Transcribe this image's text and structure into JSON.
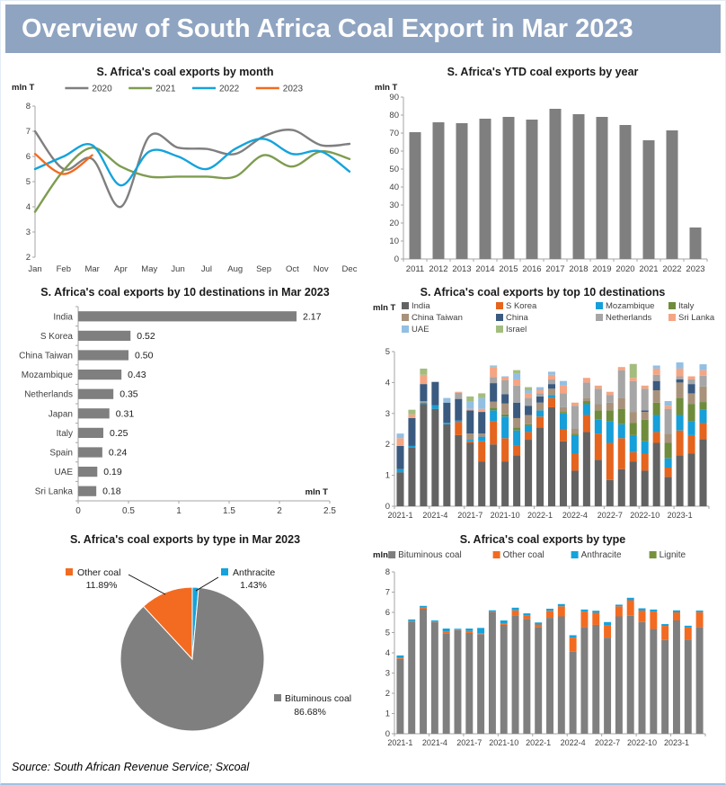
{
  "header": {
    "title": "Overview of South Africa Coal Export in Mar 2023"
  },
  "footer": {
    "source": "Source: South African Revenue Service; Sxcoal"
  },
  "theme": {
    "header_bg": "#8FA4C1",
    "header_text": "#FFFFFF",
    "axis_color": "#A6A6A6",
    "text_color": "#404040",
    "title_color": "#1A1A1A"
  },
  "chart_data": [
    {
      "name": "monthly-exports-line",
      "type": "line",
      "title": "S. Africa's coal exports by month",
      "unit": "mln T",
      "categories": [
        "Jan",
        "Feb",
        "Mar",
        "Apr",
        "May",
        "Jun",
        "Jul",
        "Aug",
        "Sep",
        "Oct",
        "Nov",
        "Dec"
      ],
      "ylim": [
        2,
        8
      ],
      "y_ticks": [
        2,
        3,
        4,
        5,
        6,
        7,
        8
      ],
      "legend_position": "top",
      "series": [
        {
          "name": "2020",
          "color": "#7F7F7F",
          "values": [
            7.0,
            5.5,
            5.9,
            4.0,
            6.8,
            6.35,
            6.3,
            6.1,
            6.8,
            7.05,
            6.45,
            6.5
          ]
        },
        {
          "name": "2021",
          "color": "#7E9C50",
          "values": [
            3.8,
            5.45,
            6.35,
            5.6,
            5.2,
            5.2,
            5.2,
            5.2,
            6.05,
            5.6,
            6.2,
            5.9
          ]
        },
        {
          "name": "2022",
          "color": "#14A3DC",
          "values": [
            5.5,
            6.0,
            6.45,
            4.85,
            6.2,
            6.0,
            5.5,
            6.3,
            6.7,
            6.1,
            6.2,
            5.4
          ]
        },
        {
          "name": "2023",
          "color": "#F26B21",
          "values": [
            6.1,
            5.3,
            6.05
          ]
        }
      ]
    },
    {
      "name": "ytd-exports-bar",
      "type": "bar",
      "title": "S. Africa's YTD coal exports by year",
      "unit": "mln T",
      "color": "#7F7F7F",
      "categories": [
        "2011",
        "2012",
        "2013",
        "2014",
        "2015",
        "2016",
        "2017",
        "2018",
        "2019",
        "2020",
        "2021",
        "2022",
        "2023"
      ],
      "values": [
        70.5,
        76,
        75.5,
        78,
        79,
        77.5,
        83.5,
        80.5,
        79,
        74.5,
        66,
        71.5,
        17.5
      ],
      "ylim": [
        0,
        90
      ],
      "y_ticks": [
        0,
        10,
        20,
        30,
        40,
        50,
        60,
        70,
        80,
        90
      ]
    },
    {
      "name": "destinations-hbar",
      "type": "hbar",
      "title": "S. Africa's coal exports by 10 destinations in Mar 2023",
      "unit": "mln T",
      "color": "#7F7F7F",
      "categories": [
        "India",
        "S Korea",
        "China Taiwan",
        "Mozambique",
        "Netherlands",
        "Japan",
        "Italy",
        "Spain",
        "UAE",
        "Sri Lanka"
      ],
      "values": [
        2.17,
        0.52,
        0.5,
        0.43,
        0.35,
        0.31,
        0.25,
        0.24,
        0.19,
        0.18
      ],
      "value_labels": [
        "2.17",
        "0.52",
        "0.50",
        "0.43",
        "0.35",
        "0.31",
        "0.25",
        "0.24",
        "0.19",
        "0.18"
      ],
      "xlim": [
        0,
        2.5
      ],
      "x_ticks": [
        0,
        0.5,
        1,
        1.5,
        2,
        2.5
      ],
      "x_tick_labels": [
        "0",
        "0.5",
        "1",
        "1.5",
        "2",
        "2.5"
      ]
    },
    {
      "name": "destinations-stacked",
      "type": "stacked",
      "title": "S. Africa's coal exports by top 10 destinations",
      "unit": "mln T",
      "categories": [
        "2021-1",
        "2021-2",
        "2021-3",
        "2021-4",
        "2021-5",
        "2021-6",
        "2021-7",
        "2021-8",
        "2021-9",
        "2021-10",
        "2021-11",
        "2021-12",
        "2022-1",
        "2022-2",
        "2022-3",
        "2022-4",
        "2022-5",
        "2022-6",
        "2022-7",
        "2022-8",
        "2022-9",
        "2022-10",
        "2022-11",
        "2022-12",
        "2023-1",
        "2023-2",
        "2023-3"
      ],
      "tick_every": 3,
      "ylim": [
        0,
        5
      ],
      "y_ticks": [
        0,
        1,
        2,
        3,
        4,
        5
      ],
      "series": [
        {
          "name": "India",
          "color": "#636363",
          "values": [
            1.1,
            1.9,
            3.3,
            3.15,
            2.65,
            2.3,
            2.05,
            1.45,
            2.0,
            1.45,
            1.65,
            2.15,
            2.55,
            3.2,
            2.1,
            1.15,
            2.4,
            1.5,
            0.85,
            1.2,
            1.45,
            1.15,
            2.05,
            0.95,
            1.65,
            1.7,
            2.17
          ]
        },
        {
          "name": "S Korea",
          "color": "#E5641E",
          "values": [
            0,
            0,
            0,
            0,
            0,
            0.42,
            0.05,
            0.65,
            0.75,
            0.75,
            0.3,
            0.25,
            0.35,
            0.3,
            0.4,
            0.55,
            0.55,
            0.85,
            1.2,
            1.0,
            0.3,
            0.55,
            0.35,
            0.3,
            0.8,
            0.6,
            0.52
          ]
        },
        {
          "name": "Mozambique",
          "color": "#169FD9",
          "values": [
            0.1,
            0.05,
            0.05,
            0.12,
            0.05,
            0.05,
            0.05,
            0.15,
            0.35,
            0.7,
            0.5,
            0.2,
            0.2,
            0.1,
            0.5,
            0.6,
            0.35,
            0.45,
            0.7,
            0.45,
            0.55,
            0.4,
            0.55,
            0.3,
            0.5,
            0.45,
            0.43
          ]
        },
        {
          "name": "Italy",
          "color": "#6E8C3C",
          "values": [
            0,
            0,
            0,
            0,
            0,
            0,
            0,
            0,
            0.08,
            0.07,
            0.1,
            0.05,
            0,
            0,
            0.05,
            0.05,
            0.1,
            0.3,
            0.35,
            0.5,
            0.4,
            0.7,
            0.4,
            0.5,
            0.55,
            0.55,
            0.25
          ]
        },
        {
          "name": "China Taiwan",
          "color": "#A8927B",
          "values": [
            0,
            0,
            0.05,
            0,
            0,
            0,
            0.2,
            0.1,
            0.2,
            0.35,
            0.3,
            0.3,
            0.25,
            0.2,
            0.15,
            0.15,
            0.1,
            0.2,
            0.25,
            0.35,
            0.35,
            0.25,
            0.4,
            0.3,
            0.5,
            0.35,
            0.5
          ]
        },
        {
          "name": "China",
          "color": "#3B5A80",
          "values": [
            0.75,
            0.9,
            0.55,
            0.75,
            0.65,
            0.7,
            0.75,
            0.7,
            0.6,
            0.3,
            0.5,
            0.3,
            0.2,
            0.15,
            0,
            0,
            0,
            0,
            0,
            0,
            0,
            0.05,
            0.3,
            0,
            0.1,
            0.3,
            0
          ]
        },
        {
          "name": "Netherlands",
          "color": "#A6A6A6",
          "values": [
            0,
            0,
            0,
            0,
            0,
            0.2,
            0,
            0,
            0.2,
            0.45,
            0.55,
            0.25,
            0.1,
            0.15,
            0.45,
            0.75,
            0.5,
            0.5,
            0.25,
            0.9,
            1.0,
            0.7,
            0.2,
            0.8,
            0.1,
            0.15,
            0.35
          ]
        },
        {
          "name": "Sri Lanka",
          "color": "#F5A583",
          "values": [
            0.25,
            0.12,
            0.3,
            0,
            0,
            0.03,
            0.05,
            0.1,
            0.3,
            0.1,
            0.2,
            0.15,
            0.1,
            0.15,
            0.25,
            0.1,
            0.15,
            0.1,
            0.1,
            0.1,
            0.1,
            0.1,
            0.2,
            0.1,
            0.25,
            0.1,
            0.18
          ]
        },
        {
          "name": "UAE",
          "color": "#93BFE2",
          "values": [
            0.15,
            0,
            0,
            0,
            0.15,
            0,
            0.25,
            0.35,
            0.05,
            0.03,
            0.2,
            0.1,
            0.1,
            0.1,
            0.15,
            0,
            0,
            0,
            0,
            0,
            0,
            0,
            0.1,
            0.15,
            0.2,
            0,
            0.19
          ]
        },
        {
          "name": "Israel",
          "color": "#A3BD7F",
          "values": [
            0,
            0.15,
            0.2,
            0,
            0,
            0,
            0.15,
            0.15,
            0.02,
            0,
            0.1,
            0.1,
            0,
            0,
            0,
            0,
            0,
            0,
            0,
            0,
            0.45,
            0,
            0,
            0,
            0,
            0,
            0
          ]
        }
      ]
    },
    {
      "name": "type-pie",
      "type": "pie",
      "title": "S. Africa's coal exports by type in Mar 2023",
      "slices": [
        {
          "name": "Anthracite",
          "value": 1.43,
          "label": "1.43%",
          "color": "#14A3DC"
        },
        {
          "name": "Bituminous coal",
          "value": 86.68,
          "label": "86.68%",
          "color": "#7F7F7F"
        },
        {
          "name": "Other coal",
          "value": 11.89,
          "label": "11.89%",
          "color": "#F26B21"
        }
      ]
    },
    {
      "name": "type-stacked",
      "type": "stacked",
      "title": "S. Africa's coal exports by type",
      "unit": "mln T",
      "categories": [
        "2021-1",
        "2021-2",
        "2021-3",
        "2021-4",
        "2021-5",
        "2021-6",
        "2021-7",
        "2021-8",
        "2021-9",
        "2021-10",
        "2021-11",
        "2021-12",
        "2022-1",
        "2022-2",
        "2022-3",
        "2022-4",
        "2022-5",
        "2022-6",
        "2022-7",
        "2022-8",
        "2022-9",
        "2022-10",
        "2022-11",
        "2022-12",
        "2023-1",
        "2023-2",
        "2023-3"
      ],
      "tick_every": 3,
      "ylim": [
        0,
        8
      ],
      "y_ticks": [
        0,
        1,
        2,
        3,
        4,
        5,
        6,
        7,
        8
      ],
      "series": [
        {
          "name": "Bituminous coal",
          "color": "#7F7F7F",
          "values": [
            3.7,
            5.55,
            6.18,
            5.52,
            4.95,
            5.12,
            4.98,
            4.92,
            6.0,
            5.38,
            5.85,
            5.68,
            5.28,
            5.73,
            5.8,
            4.05,
            5.28,
            5.38,
            4.75,
            5.8,
            5.83,
            5.52,
            5.18,
            4.63,
            5.6,
            4.65,
            5.28
          ]
        },
        {
          "name": "Other coal",
          "color": "#F26B21",
          "values": [
            0.05,
            0.02,
            0.06,
            0.02,
            0.1,
            0.02,
            0.1,
            0.05,
            0.03,
            0.07,
            0.25,
            0.17,
            0.12,
            0.35,
            0.5,
            0.7,
            0.76,
            0.6,
            0.6,
            0.5,
            0.77,
            0.57,
            0.86,
            0.7,
            0.4,
            0.6,
            0.73
          ]
        },
        {
          "name": "Anthracite",
          "color": "#14A3DC",
          "values": [
            0.12,
            0.08,
            0.08,
            0.06,
            0.15,
            0.05,
            0.12,
            0.26,
            0.07,
            0.15,
            0.13,
            0.1,
            0.1,
            0.1,
            0.11,
            0.12,
            0.1,
            0.1,
            0.17,
            0.08,
            0.12,
            0.11,
            0.1,
            0.09,
            0.1,
            0.09,
            0.08
          ]
        },
        {
          "name": "Lignite",
          "color": "#76923C",
          "values": [
            0,
            0,
            0,
            0,
            0,
            0,
            0,
            0,
            0,
            0,
            0,
            0,
            0,
            0,
            0,
            0,
            0,
            0,
            0,
            0,
            0,
            0,
            0,
            0,
            0,
            0,
            0
          ]
        }
      ]
    }
  ]
}
